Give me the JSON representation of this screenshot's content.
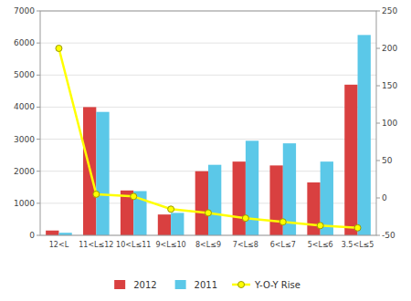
{
  "chart_data": {
    "type": "bar",
    "categories": [
      "12<L",
      "11<L≤12",
      "10<L≤11",
      "9<L≤10",
      "8<L≤9",
      "7<L≤8",
      "6<L≤7",
      "5<L≤6",
      "3.5<L≤5"
    ],
    "series": [
      {
        "name": "2012",
        "color": "#d94040",
        "values": [
          150,
          4000,
          1400,
          650,
          2000,
          2300,
          2180,
          1650,
          4700
        ]
      },
      {
        "name": "2011",
        "color": "#5bc8e8",
        "values": [
          80,
          3850,
          1380,
          700,
          2200,
          2950,
          2870,
          2300,
          6250
        ]
      },
      {
        "name": "Y-O-Y Rise",
        "type": "line",
        "axis": "y2",
        "marker": "circle",
        "color": "#ffff00",
        "values": [
          200,
          5,
          2,
          -15,
          -20,
          -27,
          -32,
          -37,
          -40
        ]
      }
    ],
    "ylim": [
      0,
      7000
    ],
    "yticks": [
      0,
      1000,
      2000,
      3000,
      4000,
      5000,
      6000,
      7000
    ],
    "y2lim": [
      -50,
      250
    ],
    "y2ticks": [
      -50,
      0,
      50,
      100,
      150,
      200,
      250
    ],
    "grid": true,
    "legend": "bottom"
  }
}
